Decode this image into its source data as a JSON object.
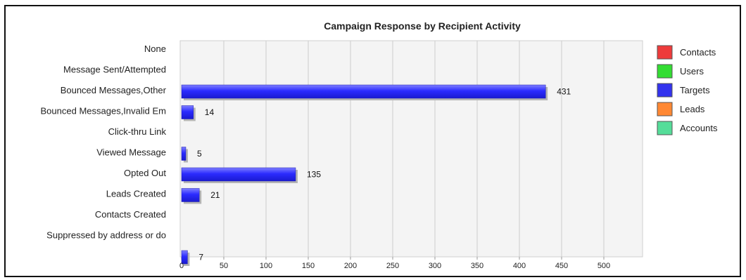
{
  "chart_data": {
    "type": "bar",
    "orientation": "horizontal",
    "title": "Campaign Response by Recipient Activity",
    "xlabel": "",
    "ylabel": "",
    "categories": [
      "None",
      "Message Sent/Attempted",
      "Bounced Messages,Other",
      "Bounced Messages,Invalid Em",
      "Click-thru Link",
      "Viewed Message",
      "Opted Out",
      "Leads Created",
      "Contacts Created",
      "Suppressed by address or do"
    ],
    "series": [
      {
        "name": "Contacts",
        "color": "#ee3b3b",
        "values": [
          0,
          0,
          0,
          0,
          0,
          0,
          0,
          0,
          0,
          0
        ]
      },
      {
        "name": "Users",
        "color": "#33dd33",
        "values": [
          0,
          0,
          0,
          0,
          0,
          0,
          0,
          0,
          0,
          0
        ]
      },
      {
        "name": "Targets",
        "color": "#3333ee",
        "values": [
          0,
          431,
          14,
          0,
          5,
          135,
          21,
          0,
          0,
          7
        ]
      },
      {
        "name": "Leads",
        "color": "#ff8833",
        "values": [
          0,
          0,
          0,
          0,
          0,
          0,
          0,
          0,
          0,
          0
        ]
      },
      {
        "name": "Accounts",
        "color": "#55dd99",
        "values": [
          0,
          0,
          0,
          0,
          0,
          0,
          0,
          0,
          0,
          0
        ]
      }
    ],
    "xlim": [
      0,
      550
    ],
    "xticks": [
      0,
      50,
      100,
      150,
      200,
      250,
      300,
      350,
      400,
      450,
      500
    ],
    "grid": true,
    "legend": "right"
  }
}
